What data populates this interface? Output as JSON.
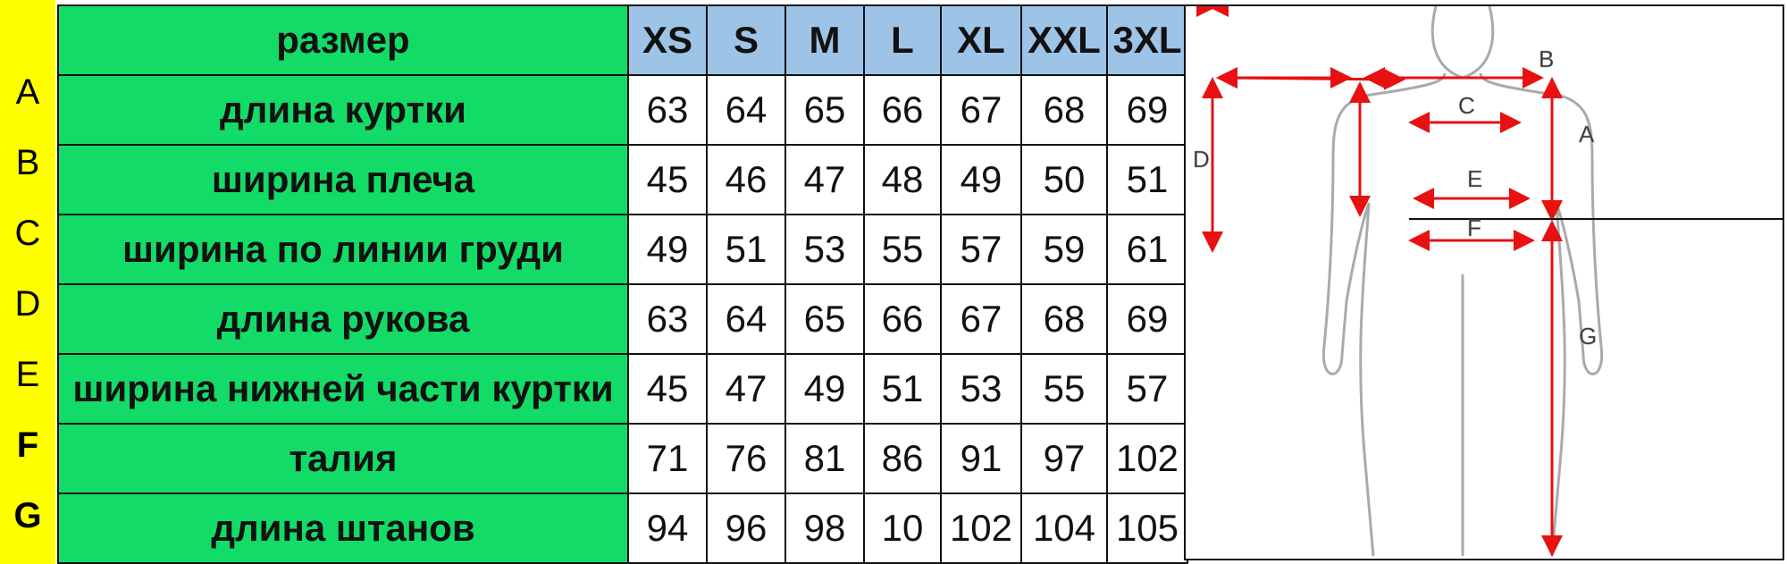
{
  "header_label": "размер",
  "sizes": [
    "XS",
    "S",
    "M",
    "L",
    "XL",
    "XXL",
    "3XL"
  ],
  "rows": [
    {
      "letter": "A",
      "label": "длина куртки",
      "values": [
        "63",
        "64",
        "65",
        "66",
        "67",
        "68",
        "69"
      ]
    },
    {
      "letter": "B",
      "label": "ширина плеча",
      "values": [
        "45",
        "46",
        "47",
        "48",
        "49",
        "50",
        "51"
      ]
    },
    {
      "letter": "C",
      "label": "ширина по линии груди",
      "values": [
        "49",
        "51",
        "53",
        "55",
        "57",
        "59",
        "61"
      ]
    },
    {
      "letter": "D",
      "label": "длина рукова",
      "values": [
        "63",
        "64",
        "65",
        "66",
        "67",
        "68",
        "69"
      ]
    },
    {
      "letter": "E",
      "label": "ширина нижней части куртки",
      "values": [
        "45",
        "47",
        "49",
        "51",
        "53",
        "55",
        "57"
      ]
    },
    {
      "letter": "F",
      "label": "талия",
      "values": [
        "71",
        "76",
        "81",
        "86",
        "91",
        "97",
        "102"
      ]
    },
    {
      "letter": "G",
      "label": "длина штанов",
      "values": [
        "94",
        "96",
        "98",
        "10",
        "102",
        "104",
        "105"
      ]
    }
  ],
  "figure_labels": {
    "A": "A",
    "B": "B",
    "C": "C",
    "D": "D",
    "E": "E",
    "F": "F",
    "G": "G"
  },
  "colors": {
    "letters_bg": "#ffff00",
    "label_bg": "#12dc67",
    "size_header_bg": "#9dc3e6",
    "arrow": "#e81010"
  }
}
